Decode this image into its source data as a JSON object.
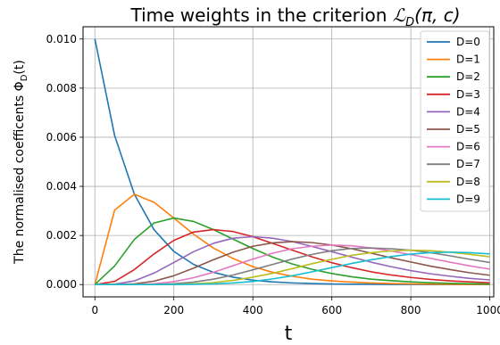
{
  "chart_data": {
    "type": "line",
    "title": "Time weights in the criterion ℒ_D(π,c)",
    "title_parts": {
      "prefix": "Time weights in the criterion ",
      "script_letter": "ℒ",
      "subscript": "D",
      "args": "(π, c)"
    },
    "xlabel": "t",
    "ylabel": "The normalised coefficents Φ_D(t)",
    "ylabel_parts": {
      "prefix": "The normalised coefficents Φ",
      "subscript": "D",
      "suffix": "(t)"
    },
    "xlim": [
      -30,
      1010
    ],
    "ylim": [
      -0.0005,
      0.0105
    ],
    "xticks": [
      0,
      200,
      400,
      600,
      800,
      1000
    ],
    "xtick_labels": [
      "0",
      "200",
      "400",
      "600",
      "800",
      "1000"
    ],
    "yticks": [
      0.0,
      0.002,
      0.004,
      0.006,
      0.008,
      0.01
    ],
    "ytick_labels": [
      "0.000",
      "0.002",
      "0.004",
      "0.006",
      "0.008",
      "0.010"
    ],
    "grid": true,
    "legend_position": "top-right",
    "x": [
      0,
      50,
      100,
      150,
      200,
      250,
      300,
      350,
      400,
      450,
      500,
      550,
      600,
      650,
      700,
      750,
      800,
      850,
      900,
      950,
      1000
    ],
    "series": [
      {
        "name": "D=0",
        "color": "#1f77b4",
        "values": [
          0.01,
          0.00607,
          0.00368,
          0.00223,
          0.00135,
          0.00082,
          0.0005,
          0.0003,
          0.00018,
          0.00011,
          6.7e-05,
          4.1e-05,
          2.5e-05,
          1.5e-05,
          9.1e-06,
          5.5e-06,
          3.4e-06,
          2e-06,
          1.2e-06,
          7.5e-07,
          4.5e-07
        ]
      },
      {
        "name": "D=1",
        "color": "#ff7f0e",
        "values": [
          0,
          0.00303,
          0.00368,
          0.00335,
          0.00271,
          0.00205,
          0.00149,
          0.00106,
          0.00073,
          0.0005,
          0.00034,
          0.00022,
          0.00015,
          0.0001,
          6.4e-05,
          4.1e-05,
          2.7e-05,
          1.7e-05,
          1.1e-05,
          7.1e-06,
          4.5e-06
        ]
      },
      {
        "name": "D=2",
        "color": "#2ca02c",
        "values": [
          0,
          0.00076,
          0.00184,
          0.00251,
          0.00271,
          0.00257,
          0.00224,
          0.00185,
          0.00147,
          0.00112,
          0.00084,
          0.00062,
          0.00045,
          0.00032,
          0.00022,
          0.00016,
          0.00011,
          7.4e-05,
          5e-05,
          3.4e-05,
          2.3e-05
        ]
      },
      {
        "name": "D=3",
        "color": "#d62728",
        "values": [
          0,
          0.00013,
          0.00061,
          0.00125,
          0.0018,
          0.00214,
          0.00224,
          0.00216,
          0.00195,
          0.00168,
          0.0014,
          0.00113,
          0.00089,
          0.00069,
          0.00052,
          0.00039,
          0.00029,
          0.00021,
          0.00015,
          0.00011,
          7.6e-05
        ]
      },
      {
        "name": "D=4",
        "color": "#9467bd",
        "values": [
          0,
          1.6e-05,
          0.00015,
          0.00047,
          0.0009,
          0.00134,
          0.00168,
          0.00189,
          0.00195,
          0.00189,
          0.00175,
          0.00155,
          0.00134,
          0.00112,
          0.00091,
          0.00073,
          0.00057,
          0.00044,
          0.00034,
          0.00025,
          0.00019
        ]
      },
      {
        "name": "D=5",
        "color": "#8c564b",
        "values": [
          0,
          1.6e-06,
          3.1e-05,
          0.00014,
          0.00036,
          0.00067,
          0.00101,
          0.00132,
          0.00156,
          0.0017,
          0.00175,
          0.00171,
          0.00161,
          0.00146,
          0.00128,
          0.00109,
          0.00092,
          0.00075,
          0.00061,
          0.00048,
          0.00038
        ]
      },
      {
        "name": "D=6",
        "color": "#e377c2",
        "values": [
          0,
          1.3e-07,
          5.1e-06,
          3.5e-05,
          0.00012,
          0.00028,
          0.0005,
          0.00077,
          0.00104,
          0.00128,
          0.00146,
          0.00156,
          0.00161,
          0.00158,
          0.00149,
          0.00137,
          0.00122,
          0.00107,
          0.00091,
          0.00076,
          0.00063
        ]
      },
      {
        "name": "D=7",
        "color": "#7f7f7f",
        "values": [
          0,
          9.4e-09,
          7.3e-07,
          7.5e-06,
          3.4e-05,
          0.0001,
          0.00022,
          0.00039,
          0.0006,
          0.00082,
          0.00104,
          0.00123,
          0.00138,
          0.00147,
          0.00149,
          0.00146,
          0.0014,
          0.0013,
          0.00117,
          0.00103,
          0.0009
        ]
      },
      {
        "name": "D=8",
        "color": "#bcbd22",
        "values": [
          0,
          6e-10,
          9e-08,
          1.4e-06,
          8.6e-06,
          3.2e-05,
          8.1e-05,
          0.00017,
          0.0003,
          0.00046,
          0.00065,
          0.00085,
          0.00103,
          0.00119,
          0.0013,
          0.00137,
          0.0014,
          0.00138,
          0.00132,
          0.00123,
          0.00113
        ]
      },
      {
        "name": "D=9",
        "color": "#17becf",
        "values": [
          0,
          3e-11,
          1e-08,
          2.3e-07,
          1.9e-06,
          8.8e-06,
          2.7e-05,
          6.6e-05,
          0.00013,
          0.00023,
          0.00036,
          0.00052,
          0.00069,
          0.00086,
          0.00101,
          0.00114,
          0.00124,
          0.0013,
          0.00132,
          0.0013,
          0.00125
        ]
      }
    ]
  }
}
